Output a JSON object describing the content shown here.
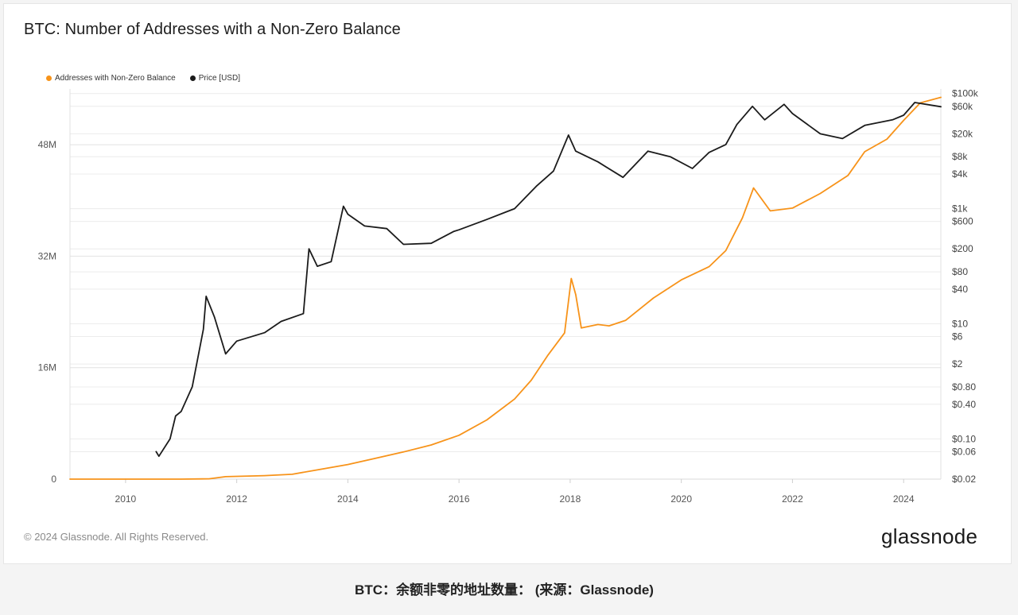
{
  "chart_title": "BTC: Number of Addresses with a Non-Zero Balance",
  "footer": {
    "copyright": "© 2024 Glassnode. All Rights Reserved.",
    "brand": "glassnode"
  },
  "caption": "BTC：余额非零的地址数量：  (来源：Glassnode)",
  "colors": {
    "addresses": "#f7931a",
    "price": "#1b1b1b",
    "grid": "#ececec"
  },
  "chart_data": {
    "type": "line",
    "title": "BTC: Number of Addresses with a Non-Zero Balance",
    "x_ticks": [
      "2010",
      "2012",
      "2014",
      "2016",
      "2018",
      "2020",
      "2022",
      "2024"
    ],
    "x_range": [
      2009.0,
      2024.67
    ],
    "y_left": {
      "ticks": [
        "0",
        "16M",
        "32M",
        "48M"
      ],
      "tick_values": [
        0,
        16000000,
        32000000,
        48000000
      ],
      "range": [
        0,
        56000000
      ]
    },
    "y_right": {
      "scale": "log",
      "ticks": [
        "$100k",
        "$60k",
        "$20k",
        "$8k",
        "$4k",
        "$1k",
        "$600",
        "$200",
        "$80",
        "$40",
        "$10",
        "$6",
        "$2",
        "$0.80",
        "$0.40",
        "$0.10",
        "$0.06",
        "$0.02"
      ],
      "tick_values": [
        100000,
        60000,
        20000,
        8000,
        4000,
        1000,
        600,
        200,
        80,
        40,
        10,
        6,
        2,
        0.8,
        0.4,
        0.1,
        0.06,
        0.02
      ],
      "range": [
        0.02,
        120000
      ]
    },
    "legend_position": "top-left",
    "grid": true,
    "series": [
      {
        "name": "Addresses with Non-Zero Balance",
        "axis": "left",
        "points": [
          [
            2009.0,
            0
          ],
          [
            2010.0,
            0
          ],
          [
            2011.0,
            0
          ],
          [
            2011.5,
            50000
          ],
          [
            2011.8,
            350000
          ],
          [
            2012.5,
            500000
          ],
          [
            2013.0,
            700000
          ],
          [
            2013.5,
            1400000
          ],
          [
            2014.0,
            2100000
          ],
          [
            2014.5,
            3000000
          ],
          [
            2015.0,
            3900000
          ],
          [
            2015.5,
            4900000
          ],
          [
            2016.0,
            6300000
          ],
          [
            2016.5,
            8500000
          ],
          [
            2017.0,
            11500000
          ],
          [
            2017.3,
            14200000
          ],
          [
            2017.6,
            17800000
          ],
          [
            2017.9,
            21000000
          ],
          [
            2018.02,
            28800000
          ],
          [
            2018.1,
            26500000
          ],
          [
            2018.2,
            21700000
          ],
          [
            2018.5,
            22200000
          ],
          [
            2018.7,
            22000000
          ],
          [
            2019.0,
            22800000
          ],
          [
            2019.5,
            26000000
          ],
          [
            2020.0,
            28600000
          ],
          [
            2020.5,
            30500000
          ],
          [
            2020.8,
            32800000
          ],
          [
            2021.1,
            37500000
          ],
          [
            2021.3,
            41800000
          ],
          [
            2021.6,
            38500000
          ],
          [
            2022.0,
            38900000
          ],
          [
            2022.5,
            41000000
          ],
          [
            2023.0,
            43600000
          ],
          [
            2023.3,
            47000000
          ],
          [
            2023.7,
            48800000
          ],
          [
            2024.0,
            51500000
          ],
          [
            2024.3,
            54000000
          ],
          [
            2024.67,
            54800000
          ]
        ]
      },
      {
        "name": "Price [USD]",
        "axis": "right",
        "points": [
          [
            2010.55,
            0.06
          ],
          [
            2010.6,
            0.05
          ],
          [
            2010.8,
            0.1
          ],
          [
            2010.9,
            0.25
          ],
          [
            2011.0,
            0.3
          ],
          [
            2011.2,
            0.8
          ],
          [
            2011.4,
            8
          ],
          [
            2011.45,
            30
          ],
          [
            2011.6,
            13
          ],
          [
            2011.8,
            3
          ],
          [
            2012.0,
            5
          ],
          [
            2012.5,
            7
          ],
          [
            2012.8,
            11
          ],
          [
            2013.2,
            15
          ],
          [
            2013.3,
            200
          ],
          [
            2013.45,
            100
          ],
          [
            2013.7,
            120
          ],
          [
            2013.92,
            1100
          ],
          [
            2014.0,
            800
          ],
          [
            2014.3,
            500
          ],
          [
            2014.7,
            450
          ],
          [
            2015.0,
            240
          ],
          [
            2015.5,
            250
          ],
          [
            2015.9,
            400
          ],
          [
            2016.0,
            430
          ],
          [
            2016.5,
            650
          ],
          [
            2017.0,
            1000
          ],
          [
            2017.4,
            2500
          ],
          [
            2017.7,
            4500
          ],
          [
            2017.97,
            19000
          ],
          [
            2018.1,
            10000
          ],
          [
            2018.5,
            6500
          ],
          [
            2018.95,
            3500
          ],
          [
            2019.4,
            10000
          ],
          [
            2019.8,
            8000
          ],
          [
            2020.2,
            5000
          ],
          [
            2020.5,
            9500
          ],
          [
            2020.8,
            13000
          ],
          [
            2021.0,
            29000
          ],
          [
            2021.28,
            60000
          ],
          [
            2021.5,
            35000
          ],
          [
            2021.85,
            65000
          ],
          [
            2022.0,
            45000
          ],
          [
            2022.5,
            20000
          ],
          [
            2022.9,
            16500
          ],
          [
            2023.3,
            28000
          ],
          [
            2023.8,
            35000
          ],
          [
            2024.0,
            42000
          ],
          [
            2024.2,
            70000
          ],
          [
            2024.67,
            59000
          ]
        ]
      }
    ]
  }
}
